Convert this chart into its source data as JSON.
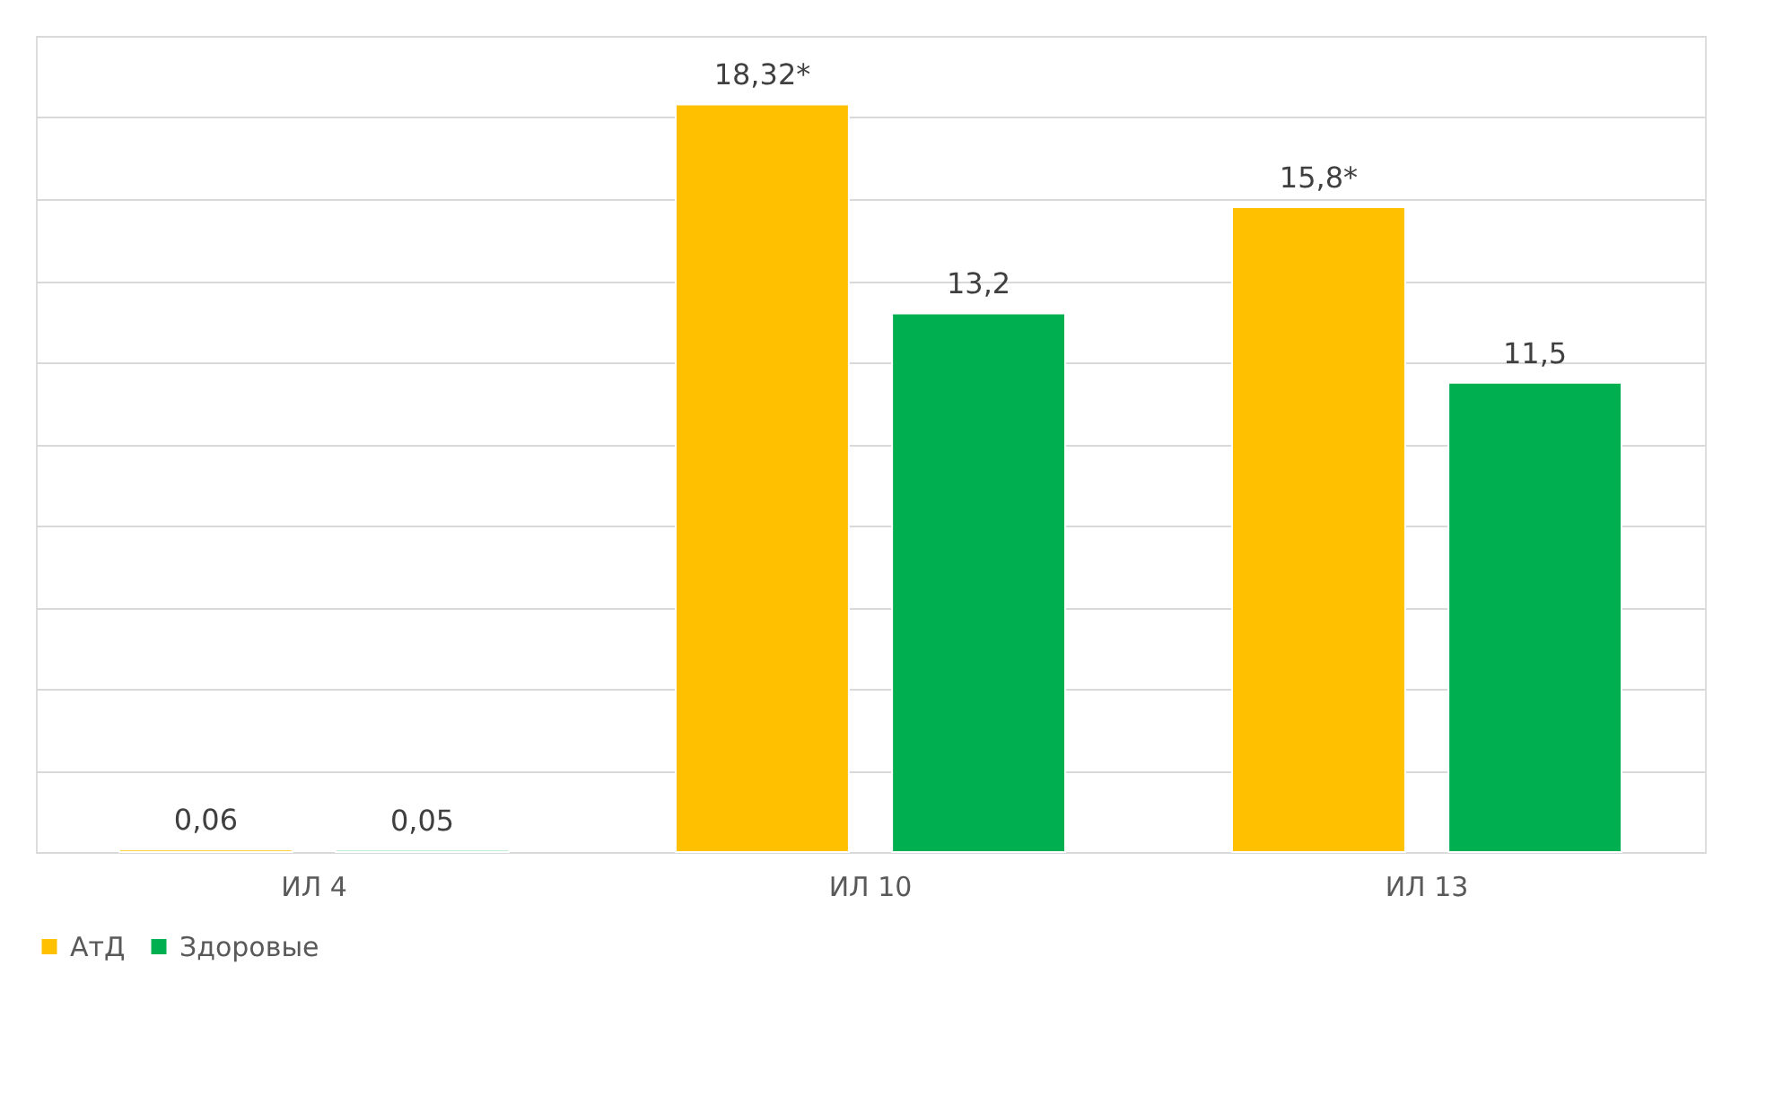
{
  "chart_data": {
    "type": "bar",
    "categories": [
      "ИЛ 4",
      "ИЛ 10",
      "ИЛ 13"
    ],
    "series": [
      {
        "name": "АтД",
        "color": "#ffc000",
        "values": [
          0.06,
          18.32,
          15.8
        ],
        "value_labels": [
          "0,06",
          "18,32*",
          "15,8*"
        ]
      },
      {
        "name": "Здоровые",
        "color": "#00b050",
        "values": [
          0.05,
          13.2,
          11.5
        ],
        "value_labels": [
          "0,05",
          "13,2",
          "11,5"
        ]
      }
    ],
    "ylim": [
      0,
      20
    ],
    "yticks": [
      {
        "value": 0,
        "label": null
      },
      {
        "value": 2,
        "label": null
      },
      {
        "value": 4,
        "label": null
      },
      {
        "value": 6,
        "label": null
      },
      {
        "value": 8,
        "label": null
      },
      {
        "value": 10,
        "label": null
      },
      {
        "value": 12,
        "label": null
      },
      {
        "value": 14,
        "label": null
      },
      {
        "value": 16,
        "label": null
      },
      {
        "value": 18,
        "label": null
      },
      {
        "value": 20,
        "label": null
      }
    ],
    "grid": "y",
    "legend": "bottom",
    "tick_labels": "x"
  }
}
